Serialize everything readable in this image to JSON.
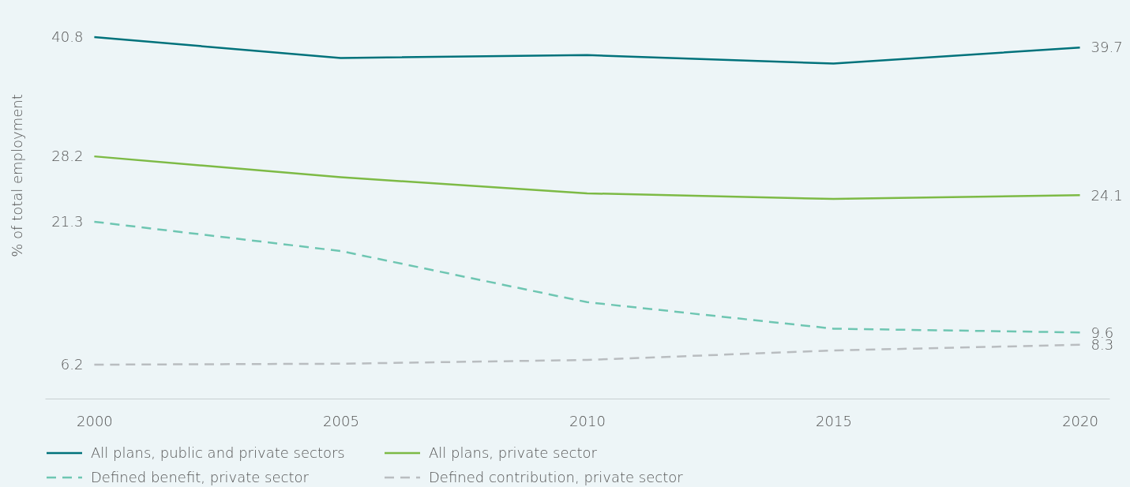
{
  "chart_data": {
    "type": "line",
    "ylabel": "% of total employment",
    "x": [
      2000,
      2005,
      2010,
      2015,
      2020
    ],
    "xlim": [
      1999,
      2020.6
    ],
    "xticks": [
      2000,
      2005,
      2010,
      2015,
      2020
    ],
    "tick_labels": "x",
    "legend": "bottom",
    "series": [
      {
        "name": "All plans, public and private sectors",
        "color": "#00727b",
        "line_style": "solid",
        "values": [
          40.8,
          38.6,
          38.9,
          38.0,
          39.7
        ],
        "value_labels": [
          "40.8",
          null,
          null,
          null,
          "39.7"
        ]
      },
      {
        "name": "All plans, private sector",
        "color": "#7dba45",
        "line_style": "solid",
        "values": [
          28.2,
          26.0,
          24.3,
          23.7,
          24.1
        ],
        "value_labels": [
          "28.2",
          null,
          null,
          null,
          "24.1"
        ]
      },
      {
        "name": "Defined benefit, private sector",
        "color": "#6ec6b2",
        "line_style": "dashed",
        "values": [
          21.3,
          18.2,
          12.8,
          10.0,
          9.6
        ],
        "value_labels": [
          "21.3",
          null,
          null,
          null,
          "9.6"
        ]
      },
      {
        "name": "Defined contribution, private sector",
        "color": "#b9bdc0",
        "line_style": "dashed",
        "values": [
          6.2,
          6.3,
          6.7,
          7.7,
          8.3
        ],
        "value_labels": [
          "6.2",
          null,
          null,
          null,
          "8.3"
        ]
      }
    ]
  }
}
